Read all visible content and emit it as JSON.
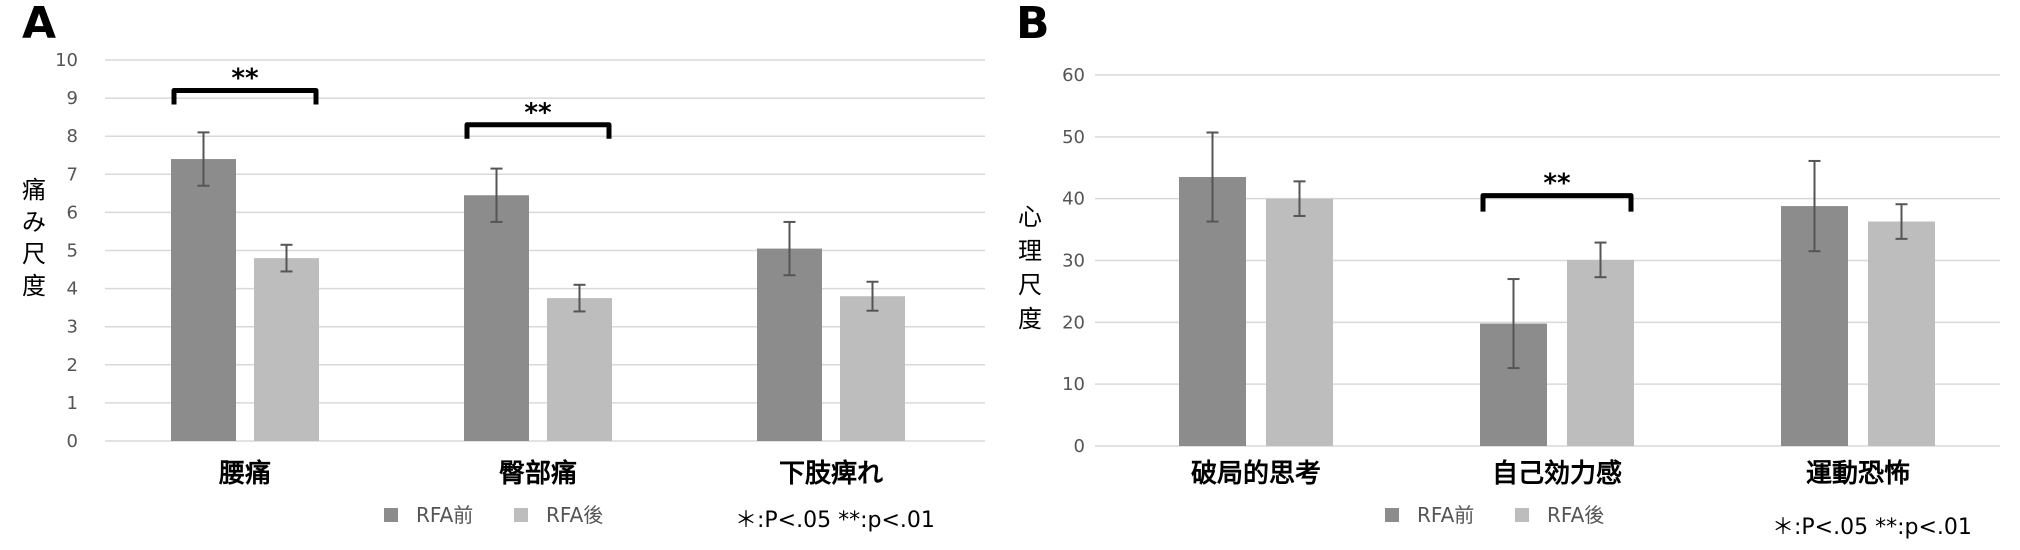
{
  "colors": {
    "before": "#8c8c8c",
    "after": "#bdbdbd",
    "grid": "#d9d9d9",
    "error": "#555555"
  },
  "legend": {
    "before": "RFA前",
    "after": "RFA後"
  },
  "note": "＊:P<.05  **:p<.01",
  "chart_data": [
    {
      "panel": "A",
      "type": "bar",
      "ylabel": "痛み尺度",
      "ylim": [
        0,
        10
      ],
      "yticks": [
        0,
        1,
        2,
        3,
        4,
        5,
        6,
        7,
        8,
        9,
        10
      ],
      "categories": [
        "腰痛",
        "臀部痛",
        "下肢痺れ"
      ],
      "series": [
        {
          "name": "RFA前",
          "values": [
            7.4,
            6.45,
            5.05
          ],
          "errors": [
            0.7,
            0.7,
            0.7
          ]
        },
        {
          "name": "RFA後",
          "values": [
            4.8,
            3.75,
            3.8
          ],
          "errors": [
            0.35,
            0.35,
            0.38
          ]
        }
      ],
      "significance": [
        {
          "category_index": 0,
          "label": "**",
          "level": 9.2
        },
        {
          "category_index": 1,
          "label": "**",
          "level": 8.3
        }
      ],
      "grid": true,
      "legend_position": "bottom"
    },
    {
      "panel": "B",
      "type": "bar",
      "ylabel": "心理尺度",
      "ylim": [
        0,
        60
      ],
      "yticks": [
        0,
        10,
        20,
        30,
        40,
        50,
        60
      ],
      "categories": [
        "破局的思考",
        "自己効力感",
        "運動恐怖"
      ],
      "series": [
        {
          "name": "RFA前",
          "values": [
            43.5,
            19.8,
            38.8
          ],
          "errors": [
            7.2,
            7.2,
            7.3
          ]
        },
        {
          "name": "RFA後",
          "values": [
            40.0,
            30.1,
            36.3
          ],
          "errors": [
            2.8,
            2.8,
            2.8
          ]
        }
      ],
      "significance": [
        {
          "category_index": 1,
          "label": "**",
          "level": 40.5
        }
      ],
      "grid": true,
      "legend_position": "bottom"
    }
  ]
}
